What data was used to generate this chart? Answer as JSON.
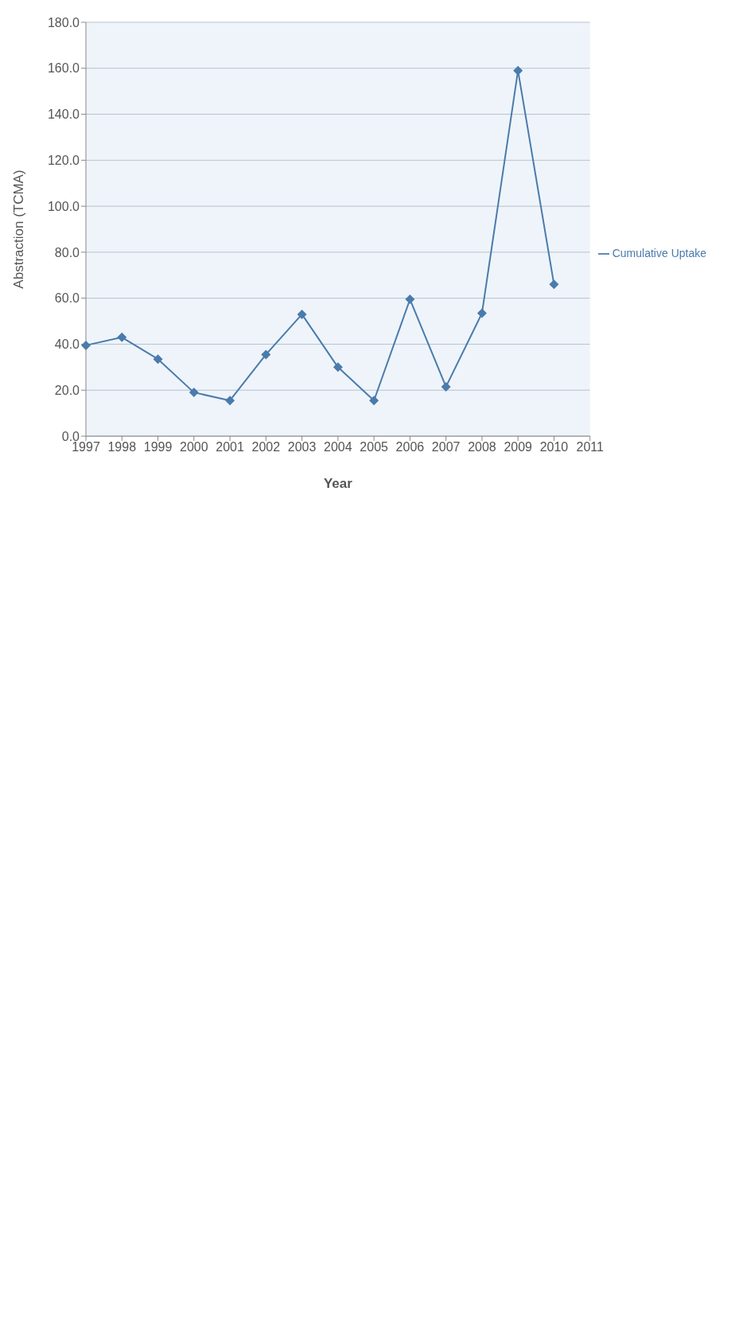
{
  "chart_data": {
    "type": "line",
    "xlabel": "Year",
    "ylabel": "Abstraction (TCMA)",
    "categories": [
      "1997",
      "1998",
      "1999",
      "2000",
      "2001",
      "2002",
      "2003",
      "2004",
      "2005",
      "2006",
      "2007",
      "2008",
      "2009",
      "2010",
      "2011"
    ],
    "series": [
      {
        "name": "Cumulative Uptake",
        "color": "#4a7bab",
        "values": [
          39.5,
          43,
          33.5,
          19,
          15.5,
          35.5,
          53,
          30,
          15.5,
          59.5,
          21.5,
          53.5,
          159,
          66,
          null
        ]
      }
    ],
    "ylim": [
      0,
      180
    ],
    "yticks": [
      {
        "value": 0,
        "label": "0.0"
      },
      {
        "value": 20,
        "label": "20.0"
      },
      {
        "value": 40,
        "label": "40.0"
      },
      {
        "value": 60,
        "label": "60.0"
      },
      {
        "value": 80,
        "label": "80.0"
      },
      {
        "value": 100,
        "label": "100.0"
      },
      {
        "value": 120,
        "label": "120.0"
      },
      {
        "value": 140,
        "label": "140.0"
      },
      {
        "value": 160,
        "label": "160.0"
      },
      {
        "value": 180,
        "label": "180.0"
      }
    ],
    "grid": "y",
    "legend": "right",
    "marker": "diamond",
    "line_style": "solid"
  }
}
